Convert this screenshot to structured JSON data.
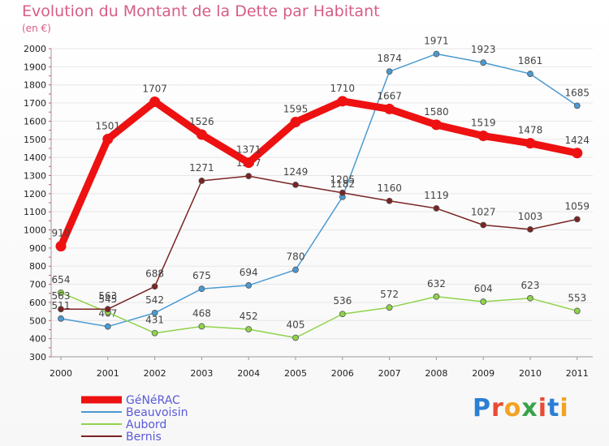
{
  "header": {
    "title": "Evolution du Montant de la Dette par Habitant",
    "subtitle": "(en €)"
  },
  "brand": {
    "text": "Proxiti",
    "colors": [
      "#2a7fd4",
      "#e94a35",
      "#f2a322",
      "#3aa24a",
      "#e94a35",
      "#2a7fd4",
      "#f2a322"
    ]
  },
  "chart_data": {
    "type": "line",
    "title": "Evolution du Montant de la Dette par Habitant",
    "subtitle": "(en €)",
    "xlabel": "",
    "ylabel": "",
    "x": [
      "2000",
      "2001",
      "2002",
      "2003",
      "2004",
      "2005",
      "2006",
      "2007",
      "2008",
      "2009",
      "2010",
      "2011"
    ],
    "ylim": [
      300,
      2000
    ],
    "yticks": [
      300,
      400,
      500,
      600,
      700,
      800,
      900,
      1000,
      1100,
      1200,
      1300,
      1400,
      1500,
      1600,
      1700,
      1800,
      1900,
      2000
    ],
    "grid": "horizontal",
    "legend": "bottom-left",
    "series": [
      {
        "name": "GéNéRAC",
        "color": "#ee1111",
        "emphasis": true,
        "values": [
          910,
          1501,
          1707,
          1526,
          1371,
          1595,
          1710,
          1667,
          1580,
          1519,
          1478,
          1424
        ]
      },
      {
        "name": "Beauvoisin",
        "color": "#4b9ad2",
        "emphasis": false,
        "values": [
          511,
          467,
          542,
          675,
          694,
          780,
          1182,
          1874,
          1971,
          1923,
          1861,
          1685
        ]
      },
      {
        "name": "Aubord",
        "color": "#8fd34a",
        "emphasis": false,
        "values": [
          654,
          545,
          431,
          468,
          452,
          405,
          536,
          572,
          632,
          604,
          623,
          553
        ]
      },
      {
        "name": "Bernis",
        "color": "#7a2424",
        "emphasis": false,
        "values": [
          563,
          563,
          688,
          1271,
          1297,
          1249,
          1205,
          1160,
          1119,
          1027,
          1003,
          1059
        ]
      }
    ]
  }
}
